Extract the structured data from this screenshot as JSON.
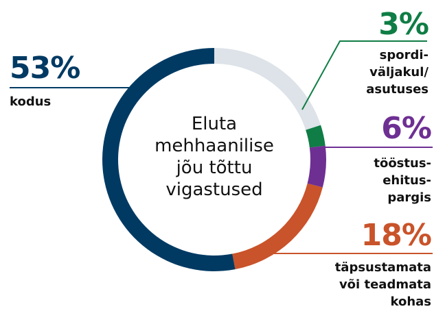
{
  "chart_data": {
    "type": "donut",
    "title": "Eluta\nmehhaanilise\njõu tõttu\nvigastused",
    "categories": [
      null,
      "spordi-\nväljakul/\nasutuses",
      "tööstus-\nehitus-\npargis",
      "täpsustamata\nvõi teadmata\nkohas",
      "kodus"
    ],
    "values": [
      20,
      3,
      6,
      18,
      53
    ],
    "value_labels": [
      null,
      "3%",
      "6%",
      "18%",
      "53%"
    ],
    "colors": [
      "#dde3e8",
      "#0f7d45",
      "#6e2f93",
      "#c9532a",
      "#003a63"
    ]
  }
}
